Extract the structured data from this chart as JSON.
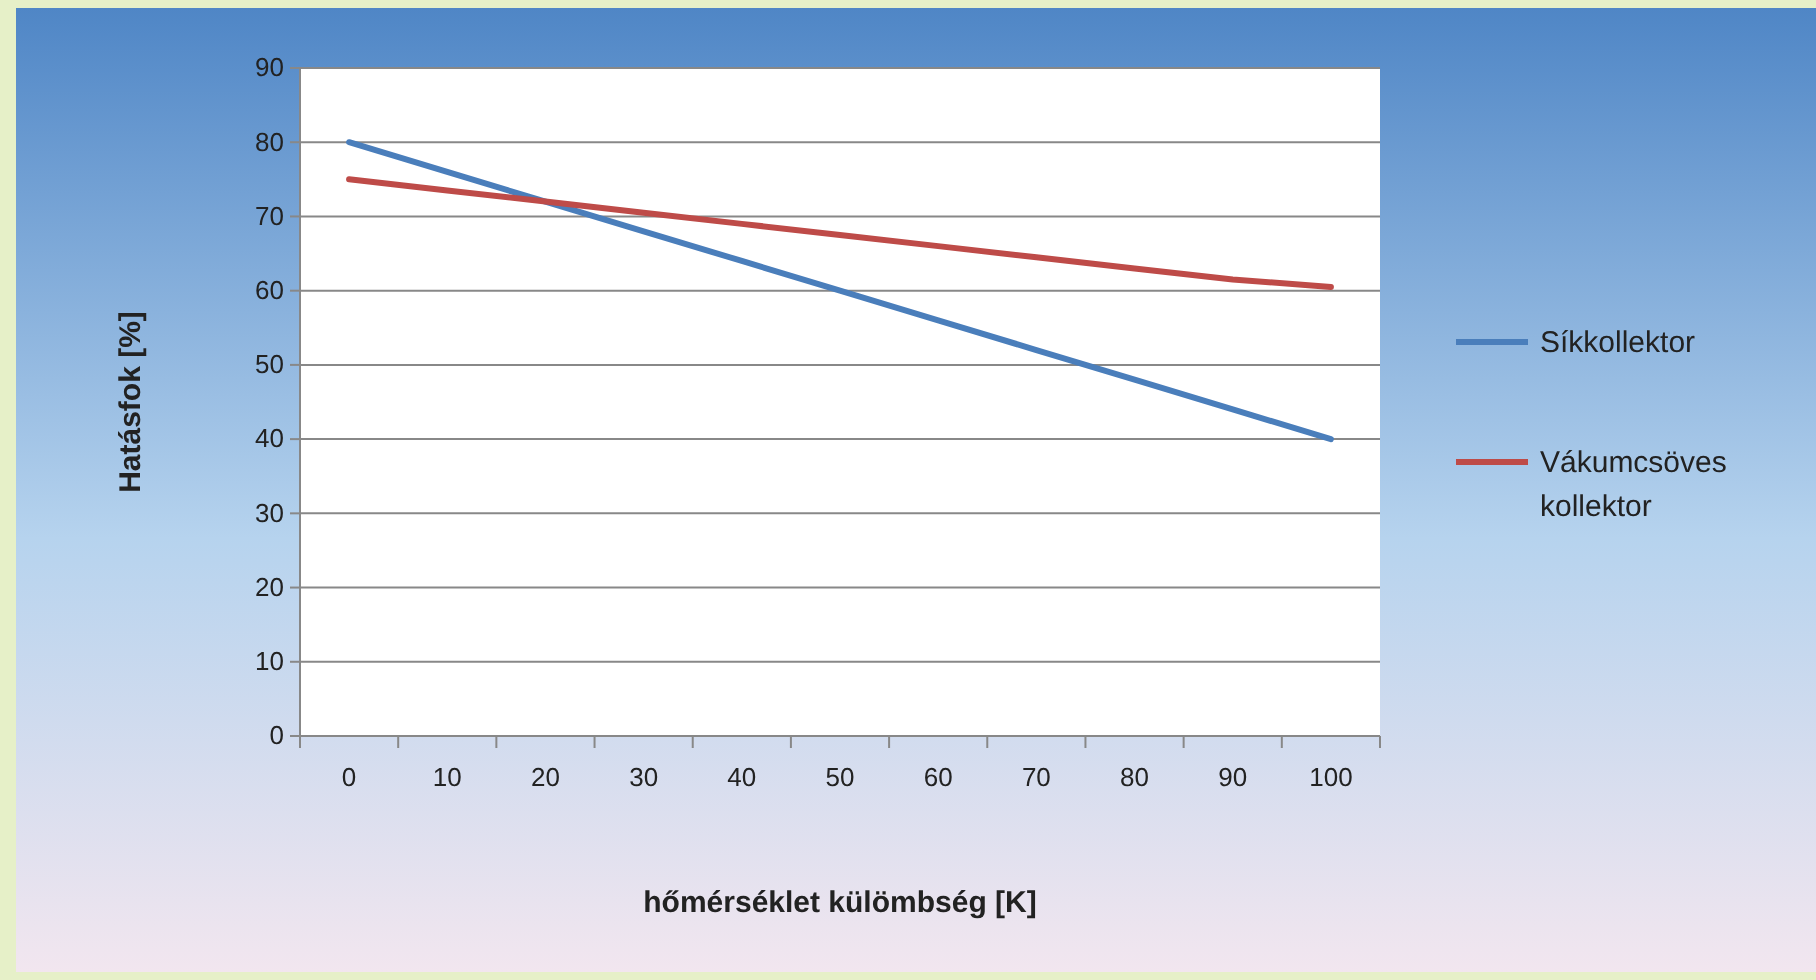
{
  "chart_data": {
    "type": "line",
    "xlabel": "hőmérséklet külömbség [K]",
    "ylabel": "Hatásfok [%]",
    "categories": [
      "0",
      "10",
      "20",
      "30",
      "40",
      "50",
      "60",
      "70",
      "80",
      "90",
      "100"
    ],
    "series": [
      {
        "name": "Síkkollektor",
        "color": "#4a7ebb",
        "values": [
          80,
          76,
          72,
          68,
          64,
          60,
          56,
          52,
          48,
          44,
          40
        ]
      },
      {
        "name": "Vákumcsöves kollektor",
        "color": "#be4b48",
        "values": [
          75,
          73.5,
          72,
          70.5,
          69,
          67.5,
          66,
          64.5,
          63,
          61.5,
          60.5
        ]
      }
    ],
    "ylim": [
      0,
      90
    ],
    "yticks": [
      0,
      10,
      20,
      30,
      40,
      50,
      60,
      70,
      80,
      90
    ],
    "grid": "y",
    "legend": "right",
    "marker": "none",
    "line_style": "solid"
  }
}
